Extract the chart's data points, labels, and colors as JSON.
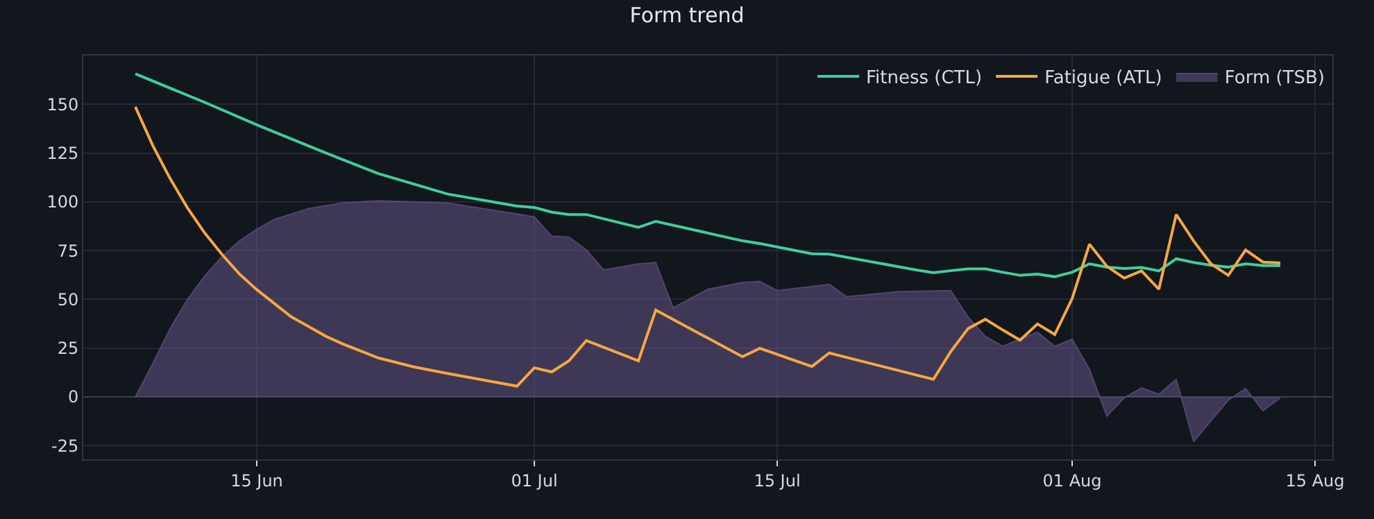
{
  "chart_data": {
    "type": "line",
    "title": "Form trend",
    "xlim": [
      "--06-05",
      "--08-16"
    ],
    "xticks": [
      {
        "value": "--06-15",
        "label": "15 Jun"
      },
      {
        "value": "--07-01",
        "label": "01 Jul"
      },
      {
        "value": "--07-15",
        "label": "15 Jul"
      },
      {
        "value": "--08-01",
        "label": "01 Aug"
      },
      {
        "value": "--08-15",
        "label": "15 Aug"
      }
    ],
    "ylim": [
      -32,
      175
    ],
    "yticks": [
      -25,
      0,
      25,
      50,
      75,
      100,
      125,
      150
    ],
    "grid": true,
    "legend": "top right",
    "series": [
      {
        "name": "Fitness (CTL)",
        "color": "#3ecf9a",
        "x": [
          "--06-08",
          "--06-12",
          "--06-15",
          "--06-19",
          "--06-22",
          "--06-26",
          "--06-30",
          "--07-01",
          "--07-02",
          "--07-03",
          "--07-04",
          "--07-07",
          "--07-08",
          "--07-13",
          "--07-14",
          "--07-17",
          "--07-18",
          "--07-23",
          "--07-24",
          "--07-25",
          "--07-26",
          "--07-27",
          "--07-28",
          "--07-29",
          "--07-30",
          "--07-31",
          "--08-01",
          "--08-02",
          "--08-03",
          "--08-04",
          "--08-05",
          "--08-06",
          "--08-07",
          "--08-08",
          "--08-09",
          "--08-10",
          "--08-11",
          "--08-12",
          "--08-13"
        ],
        "values": [
          165.6,
          151,
          139.5,
          125,
          114.5,
          104,
          97.8,
          97.1,
          94.7,
          93.5,
          93.5,
          86.9,
          90,
          80,
          78.6,
          73.4,
          73.2,
          65.1,
          63.7,
          64.7,
          65.6,
          65.6,
          63.9,
          62.3,
          63,
          61.6,
          63.9,
          68.2,
          66.5,
          65.8,
          66.3,
          64.6,
          70.8,
          68.9,
          67.5,
          66.5,
          68.2,
          67.3,
          67.3
        ]
      },
      {
        "name": "Fatigue (ATL)",
        "color": "#f5a742",
        "x": [
          "--06-08",
          "--06-09",
          "--06-10",
          "--06-11",
          "--06-12",
          "--06-13",
          "--06-14",
          "--06-15",
          "--06-16",
          "--06-17",
          "--06-18",
          "--06-19",
          "--06-20",
          "--06-22",
          "--06-24",
          "--06-26",
          "--06-30",
          "--07-01",
          "--07-02",
          "--07-03",
          "--07-04",
          "--07-07",
          "--07-08",
          "--07-13",
          "--07-14",
          "--07-17",
          "--07-18",
          "--07-24",
          "--07-25",
          "--07-26",
          "--07-27",
          "--07-28",
          "--07-29",
          "--07-30",
          "--07-31",
          "--08-01",
          "--08-02",
          "--08-03",
          "--08-04",
          "--08-05",
          "--08-06",
          "--08-07",
          "--08-08",
          "--08-09",
          "--08-10",
          "--08-11",
          "--08-12",
          "--08-13"
        ],
        "values": [
          148.7,
          129,
          112,
          97,
          84,
          73,
          63,
          55,
          48,
          41,
          36,
          31,
          27,
          20,
          15.5,
          12,
          5.5,
          14.9,
          12.8,
          18.5,
          28.9,
          18.5,
          44.5,
          20.6,
          24.9,
          15.6,
          22.5,
          9,
          23.2,
          35,
          39.8,
          34.3,
          29.1,
          37.4,
          32,
          50.4,
          78.3,
          67,
          60.9,
          64.6,
          55.2,
          93.5,
          80,
          68.2,
          62.3,
          75.3,
          69.1,
          68.7
        ]
      },
      {
        "name": "Form (TSB)",
        "type": "area",
        "color": "#6a5890",
        "x": [
          "--06-08",
          "--06-09",
          "--06-10",
          "--06-11",
          "--06-12",
          "--06-13",
          "--06-14",
          "--06-15",
          "--06-16",
          "--06-18",
          "--06-20",
          "--06-22",
          "--06-26",
          "--06-30",
          "--07-01",
          "--07-02",
          "--07-03",
          "--07-04",
          "--07-05",
          "--07-07",
          "--07-08",
          "--07-09",
          "--07-11",
          "--07-13",
          "--07-14",
          "--07-15",
          "--07-18",
          "--07-19",
          "--07-22",
          "--07-25",
          "--07-26",
          "--07-27",
          "--07-28",
          "--07-29",
          "--07-30",
          "--07-31",
          "--08-01",
          "--08-02",
          "--08-03",
          "--08-04",
          "--08-05",
          "--08-06",
          "--08-07",
          "--08-08",
          "--08-09",
          "--08-10",
          "--08-11",
          "--08-12",
          "--08-13"
        ],
        "values": [
          0,
          17,
          35,
          50,
          62,
          72,
          80,
          86,
          91,
          96.6,
          99.5,
          100.6,
          99.4,
          93.8,
          92.3,
          82.4,
          81.9,
          75.3,
          65.1,
          68.2,
          68.9,
          45.7,
          55.2,
          58.7,
          59.2,
          54.5,
          57.7,
          51.4,
          54,
          54.5,
          41,
          31,
          26,
          29.6,
          33.2,
          26,
          29.6,
          14.2,
          -9.9,
          -0.5,
          4.7,
          1.4,
          9,
          -23,
          -12.3,
          -1.7,
          4.3,
          -7.1,
          -0.5
        ]
      }
    ]
  }
}
